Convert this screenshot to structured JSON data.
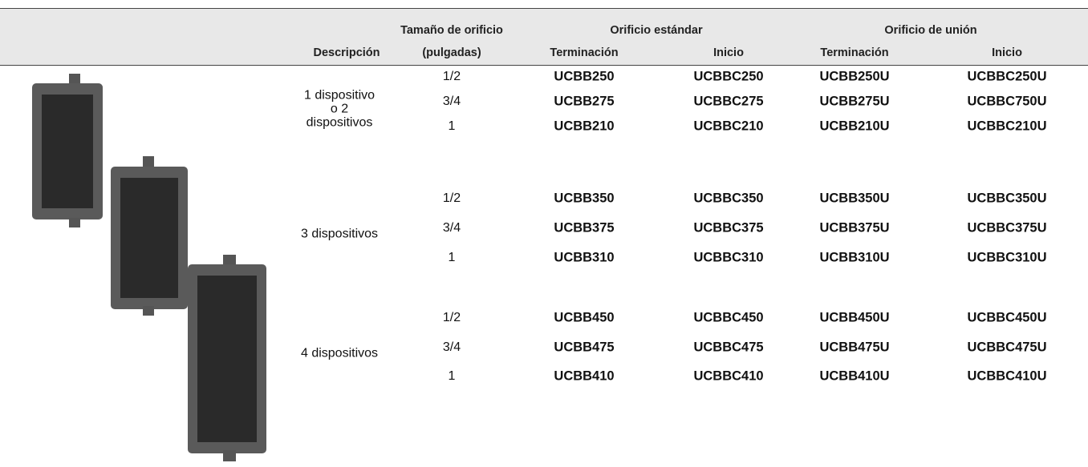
{
  "table": {
    "header_top": {
      "size": "Tamaño de orificio",
      "standard": "Orificio estándar",
      "union": "Orificio de unión"
    },
    "header_bottom": [
      "Descripción",
      "(pulgadas)",
      "Terminación",
      "Inicio",
      "Terminación",
      "Inicio"
    ],
    "groups": [
      {
        "description": "1 dispositivo o 2 dispositivos",
        "rows": [
          [
            "1/2",
            "UCBB250",
            "UCBBC250",
            "UCBB250U",
            "UCBBC250U"
          ],
          [
            "3/4",
            "UCBB275",
            "UCBBC275",
            "UCBB275U",
            "UCBBC750U"
          ],
          [
            "1",
            "UCBB210",
            "UCBBC210",
            "UCBB210U",
            "UCBBC210U"
          ]
        ]
      },
      {
        "description": "3 dispositivos",
        "rows": [
          [
            "1/2",
            "UCBB350",
            "UCBBC350",
            "UCBB350U",
            "UCBBC350U"
          ],
          [
            "3/4",
            "UCBB375",
            "UCBBC375",
            "UCBB375U",
            "UCBBC375U"
          ],
          [
            "1",
            "UCBB310",
            "UCBBC310",
            "UCBB310U",
            "UCBBC310U"
          ]
        ]
      },
      {
        "description": "4 dispositivos",
        "rows": [
          [
            "1/2",
            "UCBB450",
            "UCBBC450",
            "UCBB450U",
            "UCBBC450U"
          ],
          [
            "3/4",
            "UCBB475",
            "UCBBC475",
            "UCBB475U",
            "UCBBC475U"
          ],
          [
            "1",
            "UCBB410",
            "UCBBC410",
            "UCBB410U",
            "UCBBC410U"
          ]
        ]
      }
    ]
  }
}
